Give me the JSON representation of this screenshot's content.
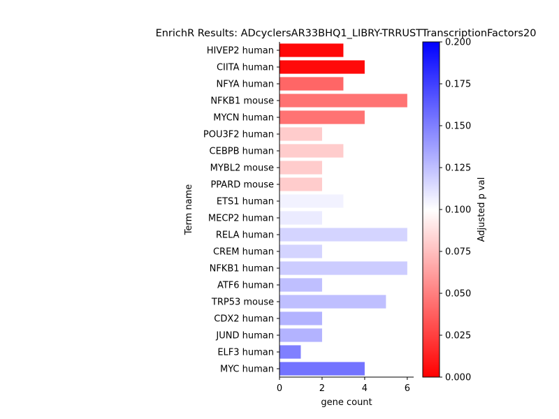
{
  "chart_data": {
    "type": "bar",
    "orientation": "horizontal",
    "title": "EnrichR Results: ADcyclersAR33BHQ1_LIBRY-TRRUSTTranscriptionFactors20",
    "xlabel": "gene count",
    "ylabel": "Term name",
    "xlim": [
      0,
      6.3
    ],
    "xticks": [
      0,
      2,
      4,
      6
    ],
    "categories": [
      "HIVEP2 human",
      "CIITA human",
      "NFYA human",
      "NFKB1 mouse",
      "MYCN human",
      "POU3F2 human",
      "CEBPB human",
      "MYBL2 mouse",
      "PPARD mouse",
      "ETS1 human",
      "MECP2 human",
      "RELA human",
      "CREM human",
      "NFKB1 human",
      "ATF6 human",
      "TRP53 mouse",
      "CDX2 human",
      "JUND human",
      "ELF3 human",
      "MYC human"
    ],
    "values": [
      3,
      4,
      3,
      6,
      4,
      2,
      3,
      2,
      2,
      3,
      2,
      6,
      2,
      6,
      2,
      5,
      2,
      2,
      1,
      4
    ],
    "adjusted_p": [
      0.003,
      0.004,
      0.04,
      0.045,
      0.045,
      0.08,
      0.08,
      0.08,
      0.08,
      0.105,
      0.108,
      0.117,
      0.117,
      0.12,
      0.125,
      0.125,
      0.13,
      0.13,
      0.15,
      0.155
    ],
    "colorbar": {
      "label": "Adjusted p val",
      "range": [
        0,
        0.2
      ],
      "ticks": [
        "0.000",
        "0.025",
        "0.050",
        "0.075",
        "0.100",
        "0.125",
        "0.150",
        "0.175",
        "0.200"
      ],
      "colormap": "bwr_r",
      "low_color": "#ff0000",
      "mid_color": "#ffffff",
      "high_color": "#0000ff"
    }
  }
}
